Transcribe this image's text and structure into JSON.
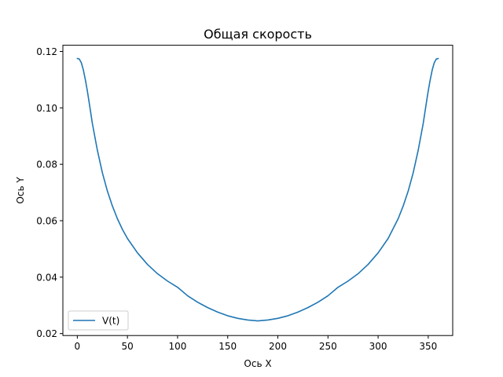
{
  "chart_data": {
    "type": "line",
    "title": "Общая скорость",
    "xlabel": "Ось X",
    "ylabel": "Ось Y",
    "xlim": [
      -14.4,
      374.4
    ],
    "ylim": [
      0.0193,
      0.1222
    ],
    "xticks": [
      0,
      50,
      100,
      150,
      200,
      250,
      300,
      350
    ],
    "xtick_labels": [
      "0",
      "50",
      "100",
      "150",
      "200",
      "250",
      "300",
      "350"
    ],
    "yticks": [
      0.02,
      0.04,
      0.06,
      0.08,
      0.1,
      0.12
    ],
    "ytick_labels": [
      "0.02",
      "0.04",
      "0.06",
      "0.08",
      "0.10",
      "0.12"
    ],
    "grid": false,
    "legend_position": "lower-left",
    "series": [
      {
        "name": "V(t)",
        "color": "#1f77b4",
        "x": [
          0,
          2,
          4,
          6,
          8,
          10,
          12,
          15,
          20,
          25,
          30,
          35,
          40,
          45,
          50,
          60,
          70,
          80,
          90,
          100,
          110,
          120,
          130,
          140,
          150,
          160,
          170,
          180,
          190,
          200,
          210,
          220,
          230,
          240,
          250,
          260,
          270,
          280,
          290,
          300,
          310,
          320,
          325,
          330,
          335,
          340,
          345,
          348,
          350,
          352,
          354,
          356,
          358,
          360
        ],
        "y": [
          0.1175,
          0.1173,
          0.116,
          0.1135,
          0.11,
          0.106,
          0.1015,
          0.0945,
          0.085,
          0.077,
          0.0705,
          0.0652,
          0.0607,
          0.0569,
          0.0537,
          0.0486,
          0.0445,
          0.0412,
          0.0386,
          0.0364,
          0.0334,
          0.0311,
          0.0292,
          0.0276,
          0.0263,
          0.0254,
          0.0248,
          0.0245,
          0.0248,
          0.0254,
          0.0263,
          0.0276,
          0.0292,
          0.0311,
          0.0334,
          0.0364,
          0.0386,
          0.0412,
          0.0445,
          0.0486,
          0.0537,
          0.0607,
          0.0652,
          0.0705,
          0.077,
          0.085,
          0.0945,
          0.1015,
          0.106,
          0.11,
          0.1135,
          0.116,
          0.1173,
          0.1175
        ]
      }
    ]
  }
}
